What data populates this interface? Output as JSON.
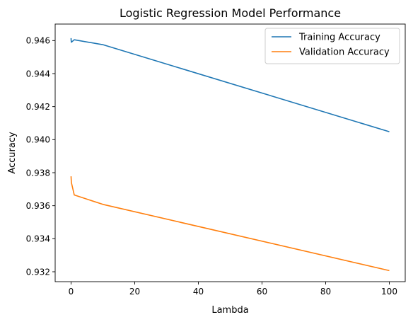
{
  "chart_data": {
    "type": "line",
    "title": "Logistic Regression Model Performance",
    "xlabel": "Lambda",
    "ylabel": "Accuracy",
    "xlim": [
      -5,
      105
    ],
    "ylim": [
      0.9314,
      0.947
    ],
    "xticks": [
      0,
      20,
      40,
      60,
      80,
      100
    ],
    "xtick_labels": [
      "0",
      "20",
      "40",
      "60",
      "80",
      "100"
    ],
    "yticks": [
      0.932,
      0.934,
      0.936,
      0.938,
      0.94,
      0.942,
      0.944,
      0.946
    ],
    "ytick_labels": [
      "0.932",
      "0.934",
      "0.936",
      "0.938",
      "0.940",
      "0.942",
      "0.944",
      "0.946"
    ],
    "grid": false,
    "legend_position": "top-right",
    "series": [
      {
        "name": "Training Accuracy",
        "color": "#1f77b4",
        "x": [
          0.001,
          0.01,
          0.1,
          1,
          10,
          100
        ],
        "y": [
          0.94615,
          0.94605,
          0.9459,
          0.94605,
          0.94575,
          0.94048
        ]
      },
      {
        "name": "Validation Accuracy",
        "color": "#ff7f0e",
        "x": [
          0.001,
          0.01,
          0.1,
          1,
          10,
          100
        ],
        "y": [
          0.93778,
          0.9377,
          0.9374,
          0.93665,
          0.93608,
          0.93207
        ]
      }
    ]
  }
}
